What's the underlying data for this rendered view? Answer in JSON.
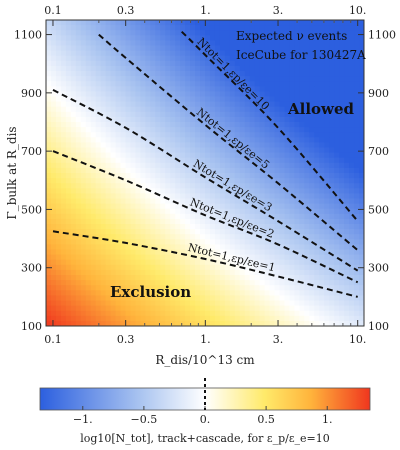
{
  "chart_data": [
    {
      "type": "heatmap",
      "title": "",
      "xlabel": "R_dis/10^13 cm",
      "ylabel": "Γ_bulk at R_dis",
      "x_scale": "log",
      "xlim": [
        0.09,
        11
      ],
      "ylim": [
        100,
        1150
      ],
      "x_ticks": [
        0.1,
        0.3,
        1,
        3,
        10
      ],
      "x_tick_labels": [
        "0.1",
        "0.3",
        "1.",
        "3.",
        "10."
      ],
      "y_ticks": [
        100,
        300,
        500,
        700,
        900,
        1100
      ],
      "y_tick_labels": [
        "100",
        "300",
        "500",
        "700",
        "900",
        "1100"
      ],
      "annotations": [
        "Expected ν events",
        "IceCube for 130427A"
      ],
      "regions": [
        "Allowed",
        "Exclusion"
      ],
      "series": [
        {
          "name": "N_tot=1, ε_p/ε_e=1",
          "label": "Ntot=1,εp/εe=1",
          "x": [
            0.1,
            0.3,
            1,
            3,
            10
          ],
          "y": [
            425,
            385,
            330,
            270,
            200
          ]
        },
        {
          "name": "N_tot=1, ε_p/ε_e=2",
          "label": "Ntot=1,εp/εe=2",
          "x": [
            0.1,
            0.3,
            1,
            3,
            10
          ],
          "y": [
            700,
            600,
            480,
            380,
            250
          ]
        },
        {
          "name": "N_tot=1, ε_p/ε_e=3",
          "label": "Ntot=1,εp/εe=3",
          "x": [
            0.1,
            0.3,
            1,
            3,
            10
          ],
          "y": [
            910,
            780,
            610,
            460,
            290
          ]
        },
        {
          "name": "N_tot=1, ε_p/ε_e=5",
          "label": "Ntot=1,εp/εe=5",
          "x": [
            0.2,
            0.3,
            1,
            3,
            10
          ],
          "y": [
            1100,
            1020,
            790,
            590,
            360
          ]
        },
        {
          "name": "N_tot=1, ε_p/ε_e=10",
          "label": "Ntot=1,εp/εe=10",
          "x": [
            0.7,
            1,
            3,
            10
          ],
          "y": [
            1110,
            1030,
            780,
            460
          ]
        }
      ]
    },
    {
      "type": "colorbar",
      "title": "log10[N_tot], track+cascade, for ε_p/ε_e=10",
      "range": [
        -1.35,
        1.35
      ],
      "ticks": [
        -1,
        -0.5,
        0,
        0.5,
        1
      ],
      "tick_labels": [
        "−1.",
        "−0.5",
        "0.",
        "0.5",
        "1."
      ],
      "marker_value": 0,
      "colors": [
        "#2c5fdf",
        "#a8c3f0",
        "#ffffff",
        "#ffea6a",
        "#ffb43c",
        "#f0361e"
      ]
    }
  ]
}
